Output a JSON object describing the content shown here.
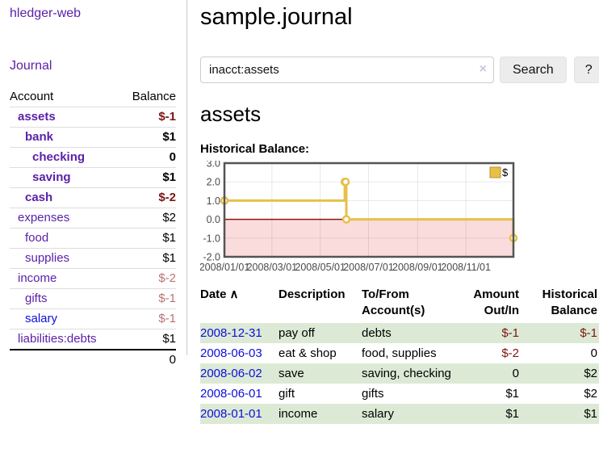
{
  "sidebar": {
    "app_title": "hledger-web",
    "journal_link": "Journal",
    "accounts": {
      "columns": [
        "Account",
        "Balance"
      ],
      "rows": [
        {
          "account": "assets",
          "depth": 1,
          "inquery": true,
          "balance": "$-1",
          "balance_class": "neg"
        },
        {
          "account": "bank",
          "depth": 2,
          "inquery": true,
          "balance": "$1",
          "balance_class": ""
        },
        {
          "account": "checking",
          "depth": 3,
          "inquery": true,
          "balance": "0",
          "balance_class": ""
        },
        {
          "account": "saving",
          "depth": 3,
          "inquery": true,
          "balance": "$1",
          "balance_class": ""
        },
        {
          "account": "cash",
          "depth": 2,
          "inquery": true,
          "balance": "$-2",
          "balance_class": "neg"
        },
        {
          "account": "expenses",
          "depth": 1,
          "inquery": false,
          "balance": "$2",
          "balance_class": ""
        },
        {
          "account": "food",
          "depth": 2,
          "inquery": false,
          "balance": "$1",
          "balance_class": ""
        },
        {
          "account": "supplies",
          "depth": 2,
          "inquery": false,
          "balance": "$1",
          "balance_class": ""
        },
        {
          "account": "income",
          "depth": 1,
          "inquery": false,
          "balance": "$-2",
          "balance_class": "neg-dim"
        },
        {
          "account": "gifts",
          "depth": 2,
          "inquery": false,
          "balance": "$-1",
          "balance_class": "neg-dim"
        },
        {
          "account": "salary",
          "depth": 2,
          "inquery": false,
          "balance": "$-1",
          "balance_class": "neg-dim",
          "unvisited": true
        },
        {
          "account": "liabilities:debts",
          "depth": 1,
          "inquery": false,
          "balance": "$1",
          "balance_class": ""
        }
      ],
      "total": "0"
    }
  },
  "main": {
    "title": "sample.journal"
  },
  "search": {
    "value": "inacct:assets",
    "clear_icon": "×",
    "button_label": "Search",
    "help_label": "?"
  },
  "account_page": {
    "heading": "assets",
    "chart_label": "Historical Balance:"
  },
  "chart_data": {
    "type": "line",
    "step": true,
    "title": "Historical Balance:",
    "series": [
      {
        "name": "$",
        "color": "#e7c04a",
        "points": [
          [
            "2008-01-01",
            1
          ],
          [
            "2008-06-01",
            2
          ],
          [
            "2008-06-02",
            2
          ],
          [
            "2008-06-03",
            0
          ],
          [
            "2008-12-31",
            -1
          ]
        ]
      }
    ],
    "xlim": [
      "2008-01-01",
      "2008-12-31"
    ],
    "ylim": [
      -2.0,
      3.0
    ],
    "yticks": [
      3.0,
      2.0,
      1.0,
      0.0,
      -1.0,
      -2.0
    ],
    "xticks": [
      "2008/01/01",
      "2008/03/01",
      "2008/05/01",
      "2008/07/01",
      "2008/09/01",
      "2008/11/01"
    ],
    "grid": true,
    "legend": "$",
    "legend_position": "top-right",
    "negative_fill": "#fbdcdc",
    "zero_line_color": "#8b1414",
    "border_color": "#545454"
  },
  "register": {
    "columns": [
      "Date",
      "Description",
      "To/From Account(s)",
      "Amount Out/In",
      "Historical Balance"
    ],
    "sort_icon": "∧",
    "rows": [
      {
        "date": "2008-12-31",
        "description": "pay off",
        "accounts": "debts",
        "amount": "$-1",
        "amount_class": "neg",
        "balance": "$-1",
        "balance_class": "neg"
      },
      {
        "date": "2008-06-03",
        "description": "eat & shop",
        "accounts": "food, supplies",
        "amount": "$-2",
        "amount_class": "neg",
        "balance": "0",
        "balance_class": ""
      },
      {
        "date": "2008-06-02",
        "description": "save",
        "accounts": "saving, checking",
        "amount": "0",
        "amount_class": "",
        "balance": "$2",
        "balance_class": ""
      },
      {
        "date": "2008-06-01",
        "description": "gift",
        "accounts": "gifts",
        "amount": "$1",
        "amount_class": "",
        "balance": "$2",
        "balance_class": ""
      },
      {
        "date": "2008-01-01",
        "description": "income",
        "accounts": "salary",
        "amount": "$1",
        "amount_class": "",
        "balance": "$1",
        "balance_class": ""
      }
    ]
  }
}
